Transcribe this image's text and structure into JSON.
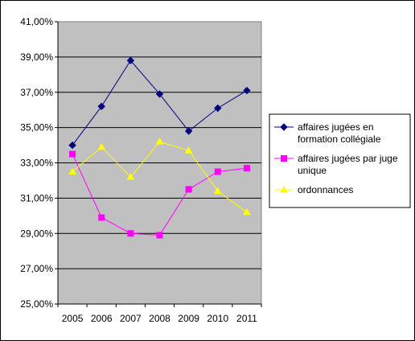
{
  "chart_data": {
    "type": "line",
    "categories": [
      "2005",
      "2006",
      "2007",
      "2008",
      "2009",
      "2010",
      "2011"
    ],
    "y_tick_labels": [
      "25,00%",
      "27,00%",
      "29,00%",
      "31,00%",
      "33,00%",
      "35,00%",
      "37,00%",
      "39,00%",
      "41,00%"
    ],
    "ylim": [
      25,
      41
    ],
    "y_unit": "%",
    "grid": true,
    "legend_position": "right",
    "plot_background": "#c0c0c0",
    "series": [
      {
        "name": "affaires jugées en formation collégiale",
        "name_lines": [
          "affaires jugées en",
          "formation collégiale"
        ],
        "values": [
          34.0,
          36.2,
          38.8,
          36.9,
          34.8,
          36.1,
          37.1
        ],
        "color": "#000080",
        "marker": "diamond"
      },
      {
        "name": "affaires jugées par juge unique",
        "name_lines": [
          "affaires jugées par juge",
          "unique"
        ],
        "values": [
          33.5,
          29.9,
          29.0,
          28.9,
          31.5,
          32.5,
          32.7
        ],
        "color": "#ff00ff",
        "marker": "square"
      },
      {
        "name": "ordonnances",
        "name_lines": [
          "ordonnances"
        ],
        "values": [
          32.5,
          33.9,
          32.2,
          34.2,
          33.7,
          31.4,
          30.2
        ],
        "color": "#ffff00",
        "marker": "triangle"
      }
    ]
  }
}
